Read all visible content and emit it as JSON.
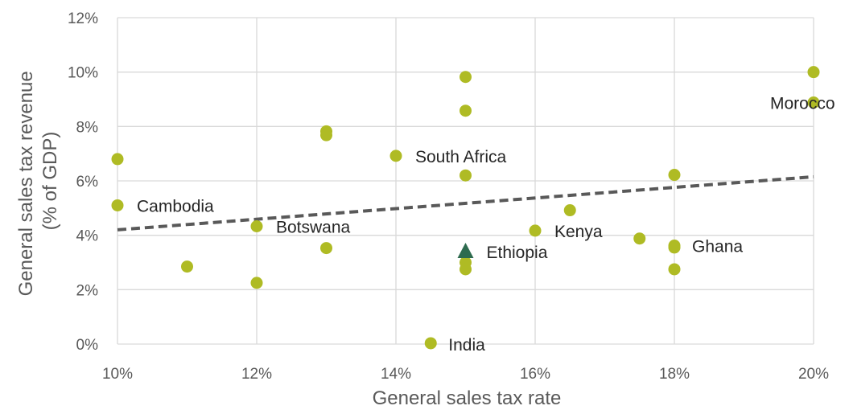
{
  "chart_data": {
    "type": "scatter",
    "xlabel": "General sales tax rate",
    "ylabel": [
      "General sales tax revenue",
      "(% of GDP)"
    ],
    "xlim": [
      10,
      20
    ],
    "ylim": [
      0,
      12
    ],
    "x_ticks": [
      {
        "v": 10,
        "label": "10%"
      },
      {
        "v": 12,
        "label": "12%"
      },
      {
        "v": 14,
        "label": "14%"
      },
      {
        "v": 16,
        "label": "16%"
      },
      {
        "v": 18,
        "label": "18%"
      },
      {
        "v": 20,
        "label": "20%"
      }
    ],
    "y_ticks": [
      {
        "v": 0,
        "label": "0%"
      },
      {
        "v": 2,
        "label": "2%"
      },
      {
        "v": 4,
        "label": "4%"
      },
      {
        "v": 6,
        "label": "6%"
      },
      {
        "v": 8,
        "label": "8%"
      },
      {
        "v": 10,
        "label": "10%"
      },
      {
        "v": 12,
        "label": "12%"
      }
    ],
    "grid": true,
    "colors": {
      "points": "#AFBB24",
      "highlight": "#2E6B4F",
      "trend": "#595959",
      "grid": "#D9D9D9"
    },
    "points": [
      {
        "x": 10,
        "y": 6.8
      },
      {
        "x": 10,
        "y": 5.1,
        "label": "Cambodia"
      },
      {
        "x": 11,
        "y": 2.85
      },
      {
        "x": 12,
        "y": 4.33,
        "label": "Botswana"
      },
      {
        "x": 12,
        "y": 2.25
      },
      {
        "x": 13,
        "y": 7.82
      },
      {
        "x": 13,
        "y": 7.68
      },
      {
        "x": 13,
        "y": 3.53
      },
      {
        "x": 14,
        "y": 6.92,
        "label": "South Africa"
      },
      {
        "x": 14.5,
        "y": 0.03,
        "label": "India"
      },
      {
        "x": 15,
        "y": 9.82
      },
      {
        "x": 15,
        "y": 8.58
      },
      {
        "x": 15,
        "y": 6.2
      },
      {
        "x": 15,
        "y": 3.0
      },
      {
        "x": 15,
        "y": 2.75
      },
      {
        "x": 16,
        "y": 4.17,
        "label": "Kenya"
      },
      {
        "x": 16.5,
        "y": 4.92
      },
      {
        "x": 17.5,
        "y": 3.88
      },
      {
        "x": 18,
        "y": 6.22
      },
      {
        "x": 18,
        "y": 3.62,
        "label": "Ghana"
      },
      {
        "x": 18,
        "y": 3.55
      },
      {
        "x": 18,
        "y": 2.75
      },
      {
        "x": 20,
        "y": 10.0
      },
      {
        "x": 20,
        "y": 8.88,
        "label": "Morocco"
      }
    ],
    "highlight": {
      "x": 15,
      "y": 3.4,
      "label": "Ethiopia",
      "marker": "triangle"
    },
    "trendline": {
      "style": "dashed",
      "x": [
        10,
        20
      ],
      "y": [
        4.2,
        6.15
      ]
    }
  }
}
